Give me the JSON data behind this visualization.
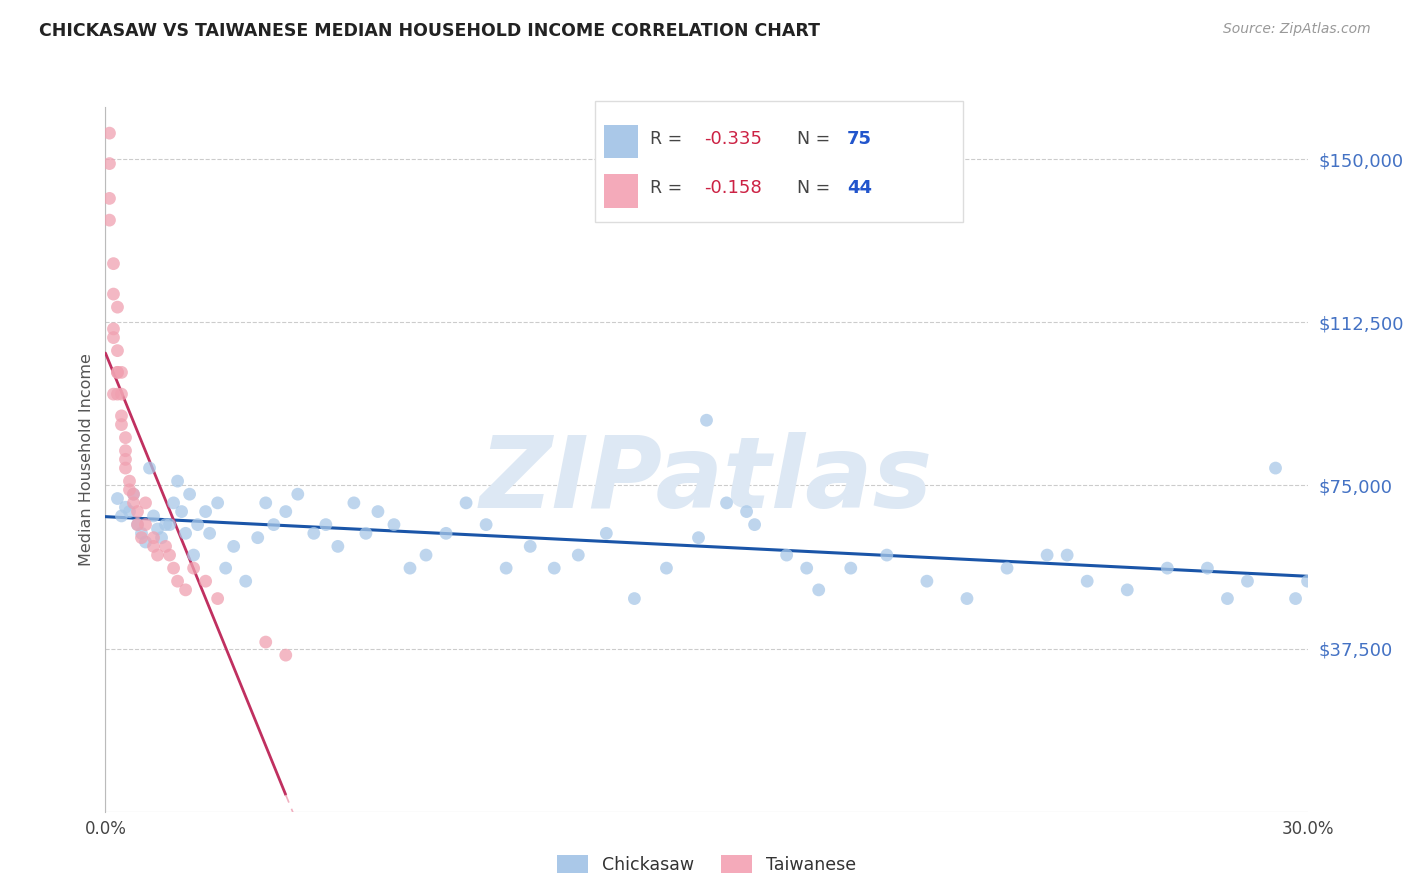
{
  "title": "CHICKASAW VS TAIWANESE MEDIAN HOUSEHOLD INCOME CORRELATION CHART",
  "source": "Source: ZipAtlas.com",
  "ylabel": "Median Household Income",
  "xlim": [
    0.0,
    0.3
  ],
  "ylim": [
    0,
    162000
  ],
  "yticks": [
    0,
    37500,
    75000,
    112500,
    150000
  ],
  "ytick_labels": [
    "",
    "$37,500",
    "$75,000",
    "$112,500",
    "$150,000"
  ],
  "xticks": [
    0.0,
    0.05,
    0.1,
    0.15,
    0.2,
    0.25,
    0.3
  ],
  "xtick_labels_show": [
    "0.0%",
    "",
    "",
    "",
    "",
    "",
    "30.0%"
  ],
  "chickasaw_color": "#a8c8e8",
  "taiwanese_color": "#f0a0b0",
  "trendline_chickasaw_color": "#1a55a8",
  "trendline_taiwanese_color": "#c03060",
  "trendline_taiwanese_ext_color": "#f0b0c0",
  "watermark": "ZIPatlas",
  "watermark_color": "#dde8f4",
  "background_color": "#ffffff",
  "chickasaw_x": [
    0.003,
    0.004,
    0.005,
    0.006,
    0.007,
    0.008,
    0.009,
    0.01,
    0.011,
    0.012,
    0.013,
    0.014,
    0.015,
    0.016,
    0.017,
    0.018,
    0.019,
    0.02,
    0.021,
    0.022,
    0.023,
    0.025,
    0.026,
    0.028,
    0.03,
    0.032,
    0.035,
    0.038,
    0.04,
    0.042,
    0.045,
    0.048,
    0.052,
    0.055,
    0.058,
    0.062,
    0.065,
    0.068,
    0.072,
    0.076,
    0.08,
    0.085,
    0.09,
    0.095,
    0.1,
    0.106,
    0.112,
    0.118,
    0.125,
    0.132,
    0.14,
    0.148,
    0.155,
    0.162,
    0.17,
    0.178,
    0.186,
    0.195,
    0.205,
    0.215,
    0.225,
    0.235,
    0.245,
    0.255,
    0.265,
    0.275,
    0.285,
    0.292,
    0.297,
    0.3,
    0.15,
    0.16,
    0.175,
    0.24,
    0.28
  ],
  "chickasaw_y": [
    72000,
    68000,
    70000,
    69000,
    73000,
    66000,
    64000,
    62000,
    79000,
    68000,
    65000,
    63000,
    66000,
    66000,
    71000,
    76000,
    69000,
    64000,
    73000,
    59000,
    66000,
    69000,
    64000,
    71000,
    56000,
    61000,
    53000,
    63000,
    71000,
    66000,
    69000,
    73000,
    64000,
    66000,
    61000,
    71000,
    64000,
    69000,
    66000,
    56000,
    59000,
    64000,
    71000,
    66000,
    56000,
    61000,
    56000,
    59000,
    64000,
    49000,
    56000,
    63000,
    71000,
    66000,
    59000,
    51000,
    56000,
    59000,
    53000,
    49000,
    56000,
    59000,
    53000,
    51000,
    56000,
    56000,
    53000,
    79000,
    49000,
    53000,
    90000,
    69000,
    56000,
    59000,
    49000
  ],
  "taiwanese_x": [
    0.001,
    0.001,
    0.001,
    0.001,
    0.002,
    0.002,
    0.002,
    0.002,
    0.002,
    0.003,
    0.003,
    0.003,
    0.003,
    0.003,
    0.004,
    0.004,
    0.004,
    0.004,
    0.005,
    0.005,
    0.005,
    0.005,
    0.006,
    0.006,
    0.007,
    0.007,
    0.008,
    0.008,
    0.009,
    0.01,
    0.01,
    0.012,
    0.012,
    0.013,
    0.015,
    0.016,
    0.017,
    0.018,
    0.02,
    0.022,
    0.025,
    0.028,
    0.04,
    0.045
  ],
  "taiwanese_y": [
    156000,
    149000,
    141000,
    136000,
    126000,
    119000,
    111000,
    109000,
    96000,
    116000,
    106000,
    101000,
    101000,
    96000,
    101000,
    96000,
    91000,
    89000,
    86000,
    83000,
    81000,
    79000,
    76000,
    74000,
    73000,
    71000,
    69000,
    66000,
    63000,
    71000,
    66000,
    61000,
    63000,
    59000,
    61000,
    59000,
    56000,
    53000,
    51000,
    56000,
    53000,
    49000,
    39000,
    36000
  ]
}
